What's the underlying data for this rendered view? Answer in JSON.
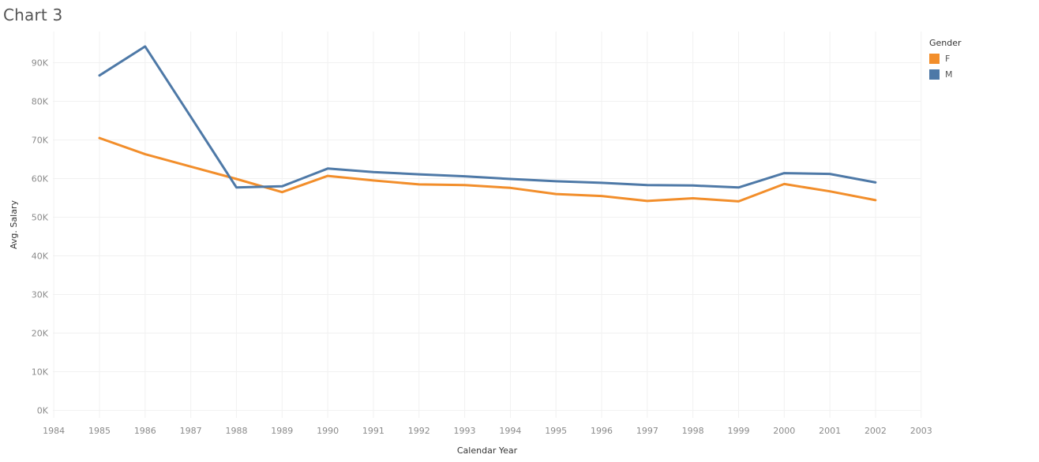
{
  "title": "Chart 3",
  "chart_data": {
    "type": "line",
    "x": [
      1985,
      1986,
      1987,
      1988,
      1989,
      1990,
      1991,
      1992,
      1993,
      1994,
      1995,
      1996,
      1997,
      1998,
      1999,
      2000,
      2001,
      2002
    ],
    "x_ticks": [
      "1984",
      "1985",
      "1986",
      "1987",
      "1988",
      "1989",
      "1990",
      "1991",
      "1992",
      "1993",
      "1994",
      "1995",
      "1996",
      "1997",
      "1998",
      "1999",
      "2000",
      "2001",
      "2002",
      "2003"
    ],
    "y_ticks": [
      "0K",
      "10K",
      "20K",
      "30K",
      "40K",
      "50K",
      "60K",
      "70K",
      "80K",
      "90K"
    ],
    "xlim": [
      1984,
      2003
    ],
    "ylim": [
      0,
      90000
    ],
    "xlabel": "Calendar Year",
    "ylabel": "Avg. Salary",
    "grid": true,
    "legend": {
      "title": "Gender",
      "position": "right"
    },
    "series": [
      {
        "name": "F",
        "color": "#f28e2b",
        "values": [
          70500,
          66300,
          63100,
          59900,
          56500,
          60700,
          59500,
          58500,
          58300,
          57600,
          56000,
          55500,
          54200,
          54900,
          54100,
          58600,
          56700,
          54400
        ]
      },
      {
        "name": "M",
        "color": "#4e79a7",
        "values": [
          86700,
          94200,
          76000,
          57700,
          58000,
          62600,
          61700,
          61100,
          60600,
          59900,
          59300,
          58900,
          58300,
          58200,
          57700,
          61400,
          61200,
          59000
        ]
      }
    ]
  }
}
